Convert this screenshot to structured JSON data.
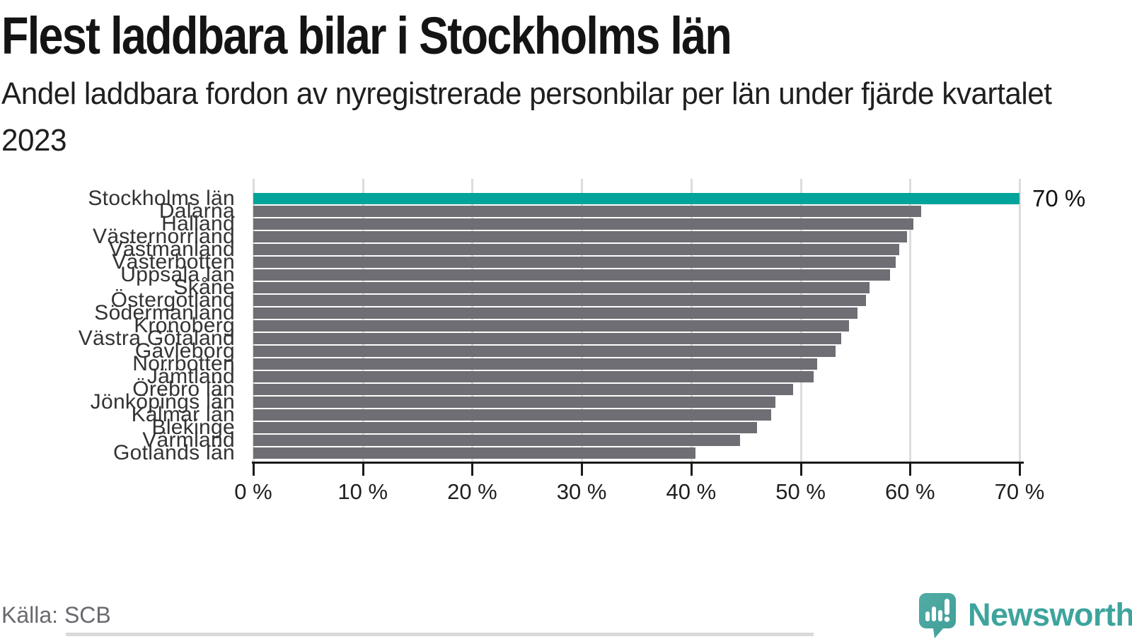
{
  "header": {
    "title": "Flest laddbara bilar i Stockholms län",
    "subtitle": "Andel laddbara fordon av nyregistrerade personbilar per län under fjärde kvartalet 2023"
  },
  "chart_data": {
    "type": "bar",
    "orientation": "horizontal",
    "title": "Flest laddbara bilar i Stockholms län",
    "subtitle": "Andel laddbara fordon av nyregistrerade personbilar per län under fjärde kvartalet 2023",
    "unit": "%",
    "xlim": [
      0,
      70
    ],
    "grid": true,
    "categories": [
      "Stockholms län",
      "Dalarna",
      "Halland",
      "Västernorrland",
      "Västmanland",
      "Västerbotten",
      "Uppsala län",
      "Skåne",
      "Östergötland",
      "Södermanland",
      "Kronoberg",
      "Västra Götaland",
      "Gävleborg",
      "Norrbotten",
      "Jämtland",
      "Örebro län",
      "Jönköpings län",
      "Kalmar län",
      "Blekinge",
      "Värmland",
      "Gotlands län"
    ],
    "values": [
      70,
      61,
      60.3,
      59.7,
      59,
      58.7,
      58.2,
      56.3,
      56,
      55.2,
      54.4,
      53.7,
      53.2,
      51.5,
      51.2,
      49.3,
      47.7,
      47.3,
      46,
      44.5,
      40.4
    ],
    "highlight_index": 0,
    "annotation": {
      "index": 0,
      "text": "70 %"
    },
    "x_ticks": [
      {
        "value": 0,
        "label": "0 %"
      },
      {
        "value": 10,
        "label": "10 %"
      },
      {
        "value": 20,
        "label": "20 %"
      },
      {
        "value": 30,
        "label": "30 %"
      },
      {
        "value": 40,
        "label": "40 %"
      },
      {
        "value": 50,
        "label": "50 %"
      },
      {
        "value": 60,
        "label": "60 %"
      },
      {
        "value": 70,
        "label": "70 %"
      }
    ],
    "bar_color": "#6e6e74",
    "highlight_color": "#00a49b",
    "gridline_color": "#dcdcdc"
  },
  "footer": {
    "source": "Källa: SCB",
    "brand": "Newsworthy"
  }
}
